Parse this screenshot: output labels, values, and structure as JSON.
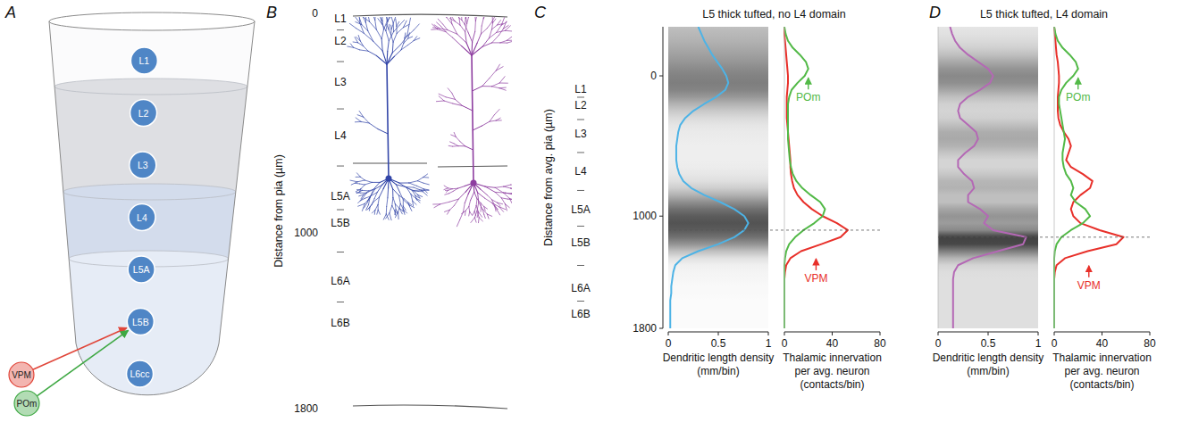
{
  "panel_labels": [
    "A",
    "B",
    "C",
    "D"
  ],
  "panel_a": {
    "layers": [
      "L1",
      "L2",
      "L3",
      "L4",
      "L5A",
      "L5B",
      "L6cc"
    ],
    "inputs": [
      {
        "label": "VPM",
        "color": "#e0463a",
        "target": "L5B"
      },
      {
        "label": "POm",
        "color": "#3ea843",
        "target": "L5B"
      }
    ]
  },
  "panel_b": {
    "y_label": "Distance from pia (µm)",
    "ylim": [
      0,
      1800
    ],
    "yticks": [
      0,
      1000,
      1800
    ],
    "layers": {
      "labels": [
        "L1",
        "L2",
        "L3",
        "L4",
        "L5A",
        "L5B",
        "L6A",
        "L6B"
      ],
      "depths": [
        25,
        126,
        313,
        557,
        833,
        955,
        1219,
        1410
      ]
    },
    "neuron_colors": [
      "#3346a8",
      "#8e3ea0"
    ]
  },
  "chart_data": [
    {
      "type": "density",
      "title": "L5 thick tufted, no L4 domain",
      "x_label": "Distance from avg. pia (µm)",
      "y_label": "Dendritic length density (mm/bin)",
      "orientation": "horizontal",
      "x": [
        -350,
        -300,
        -250,
        -200,
        -150,
        -100,
        -50,
        0,
        50,
        100,
        150,
        200,
        250,
        300,
        350,
        400,
        450,
        500,
        550,
        600,
        650,
        700,
        750,
        800,
        850,
        900,
        950,
        1000,
        1050,
        1100,
        1150,
        1200,
        1250,
        1300,
        1350,
        1400,
        1450,
        1500,
        1550,
        1600,
        1650,
        1700,
        1750,
        1800
      ],
      "series": [
        {
          "color": "#4db3e6",
          "values": [
            0.3,
            0.33,
            0.36,
            0.4,
            0.44,
            0.49,
            0.54,
            0.58,
            0.6,
            0.57,
            0.48,
            0.36,
            0.25,
            0.17,
            0.12,
            0.1,
            0.09,
            0.08,
            0.08,
            0.08,
            0.09,
            0.11,
            0.15,
            0.23,
            0.36,
            0.52,
            0.66,
            0.76,
            0.8,
            0.76,
            0.66,
            0.5,
            0.3,
            0.14,
            0.07,
            0.05,
            0.04,
            0.03,
            0.03,
            0.02,
            0.02,
            0.02,
            0.02,
            0.02
          ]
        }
      ],
      "xlim": [
        -350,
        1800
      ],
      "xticks": [
        0,
        1000,
        1800
      ],
      "ylim": [
        0,
        1
      ],
      "yticks": [
        0,
        0.5,
        1
      ],
      "layers": {
        "labels": [
          "L1",
          "L2",
          "L3",
          "L4",
          "L5A",
          "L5B",
          "L6A",
          "L6B"
        ],
        "depths": [
          95,
          210,
          413,
          680,
          954,
          1189,
          1514,
          1698
        ]
      }
    },
    {
      "type": "line",
      "y_label": "Thalamic innervation per avg. neuron (contacts/bin)",
      "orientation": "horizontal",
      "x": [
        -350,
        -300,
        -250,
        -200,
        -150,
        -100,
        -50,
        0,
        50,
        100,
        150,
        200,
        250,
        300,
        350,
        400,
        450,
        500,
        550,
        600,
        650,
        700,
        750,
        800,
        850,
        900,
        950,
        1000,
        1050,
        1100,
        1150,
        1200,
        1250,
        1300,
        1350,
        1400,
        1450,
        1500,
        1550,
        1600,
        1650,
        1700,
        1750,
        1800
      ],
      "series": [
        {
          "name": "VPM",
          "color": "#e8302a",
          "values": [
            0,
            0,
            0.5,
            1,
            1.5,
            2,
            2.5,
            3,
            3,
            2.5,
            2,
            2,
            2,
            2,
            2.5,
            3,
            3.5,
            4,
            4.5,
            5,
            5,
            5.5,
            6.5,
            8,
            11,
            16,
            23,
            32,
            44,
            53,
            47,
            31,
            14,
            5,
            1.5,
            0.5,
            0,
            0,
            0,
            0,
            0,
            0,
            0,
            0
          ]
        },
        {
          "name": "POm",
          "color": "#52b947",
          "values": [
            0,
            1,
            3,
            7,
            13,
            18,
            20,
            17,
            11,
            6,
            4,
            3,
            3,
            3,
            3,
            3,
            3,
            3.5,
            4,
            4.5,
            5.5,
            7,
            10,
            15,
            22,
            30,
            34,
            32,
            25,
            16,
            9,
            4,
            1.5,
            0.5,
            0,
            0,
            0,
            0,
            0,
            0,
            0,
            0,
            0,
            0
          ]
        }
      ],
      "xlim": [
        -350,
        1800
      ],
      "ylim": [
        0,
        80
      ],
      "yticks": [
        0,
        40,
        80
      ],
      "tick_labels": "y"
    },
    {
      "type": "density",
      "title": "L5 thick tufted, L4 domain",
      "y_label": "Dendritic length density (mm/bin)",
      "orientation": "horizontal",
      "x": [
        -350,
        -300,
        -250,
        -200,
        -150,
        -100,
        -50,
        0,
        50,
        100,
        150,
        200,
        250,
        300,
        350,
        400,
        450,
        500,
        550,
        600,
        650,
        700,
        750,
        800,
        850,
        900,
        950,
        1000,
        1050,
        1100,
        1150,
        1200,
        1250,
        1300,
        1350,
        1400,
        1450,
        1500,
        1550,
        1600,
        1650,
        1700,
        1750,
        1800
      ],
      "series": [
        {
          "color": "#b468b5",
          "values": [
            0.12,
            0.14,
            0.17,
            0.22,
            0.3,
            0.4,
            0.5,
            0.55,
            0.52,
            0.42,
            0.3,
            0.22,
            0.2,
            0.22,
            0.3,
            0.38,
            0.4,
            0.36,
            0.27,
            0.2,
            0.2,
            0.26,
            0.34,
            0.36,
            0.3,
            0.3,
            0.42,
            0.5,
            0.46,
            0.55,
            0.88,
            0.85,
            0.6,
            0.35,
            0.2,
            0.16,
            0.15,
            0.15,
            0.15,
            0.15,
            0.15,
            0.15,
            0.15,
            0.15
          ]
        }
      ],
      "xlim": [
        -350,
        1800
      ],
      "ylim": [
        0,
        1
      ],
      "yticks": [
        0,
        0.5,
        1
      ],
      "tick_labels": "y"
    },
    {
      "type": "line",
      "y_label": "Thalamic innervation per avg. neuron (contacts/bin)",
      "orientation": "horizontal",
      "x": [
        -350,
        -300,
        -250,
        -200,
        -150,
        -100,
        -50,
        0,
        50,
        100,
        150,
        200,
        250,
        300,
        350,
        400,
        450,
        500,
        550,
        600,
        650,
        700,
        750,
        800,
        850,
        900,
        950,
        1000,
        1050,
        1100,
        1150,
        1200,
        1250,
        1300,
        1350,
        1400,
        1450,
        1500,
        1550,
        1600,
        1650,
        1700,
        1750,
        1800
      ],
      "series": [
        {
          "name": "VPM",
          "color": "#e8302a",
          "values": [
            0,
            0.5,
            1,
            1.5,
            2,
            3,
            3.5,
            4,
            4,
            3.5,
            3,
            3,
            3,
            3.5,
            5,
            8,
            12,
            14,
            12,
            10,
            14,
            24,
            32,
            30,
            22,
            16,
            14,
            16,
            22,
            38,
            58,
            52,
            28,
            9,
            2,
            0.5,
            0,
            0,
            0,
            0,
            0,
            0,
            0,
            0
          ]
        },
        {
          "name": "POm",
          "color": "#52b947",
          "values": [
            0,
            1,
            3,
            7,
            13,
            18,
            20,
            16,
            10,
            6,
            4,
            4,
            5,
            6,
            7,
            8,
            9,
            8,
            7,
            7,
            8,
            10,
            14,
            16,
            14,
            18,
            26,
            30,
            24,
            14,
            6,
            2,
            0.5,
            0,
            0,
            0,
            0,
            0,
            0,
            0,
            0,
            0,
            0,
            0
          ]
        }
      ],
      "xlim": [
        -350,
        1800
      ],
      "ylim": [
        0,
        80
      ],
      "yticks": [
        0,
        40,
        80
      ],
      "tick_labels": "y"
    }
  ]
}
